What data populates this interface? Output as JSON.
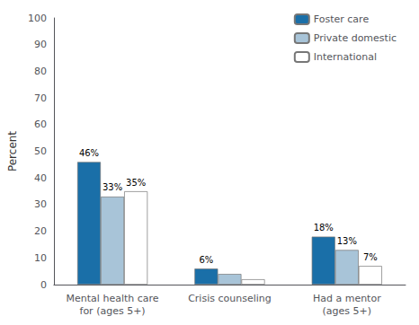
{
  "chart_data": {
    "type": "bar",
    "categories": [
      "Mental health care\nfor (ages 5+)",
      "Crisis counseling",
      "Had a mentor\n(ages 5+)"
    ],
    "series": [
      {
        "name": "Foster care",
        "color": "#1a6fa8",
        "values": [
          46,
          6,
          18
        ],
        "value_labels": [
          "46%",
          "6%",
          "18%"
        ]
      },
      {
        "name": "Private domestic",
        "color": "#a8c4d8",
        "values": [
          33,
          4,
          13
        ],
        "value_labels": [
          "33%",
          null,
          "13%"
        ]
      },
      {
        "name": "International",
        "color": "#ffffff",
        "values": [
          35,
          2,
          7
        ],
        "value_labels": [
          "35%",
          null,
          "7%"
        ]
      }
    ],
    "ylabel": "Percent",
    "ylim": [
      0,
      100
    ],
    "yticks": [
      0,
      10,
      20,
      30,
      40,
      50,
      60,
      70,
      80,
      90,
      100
    ],
    "grid": false,
    "legend": "upper right",
    "data_labels": true
  }
}
